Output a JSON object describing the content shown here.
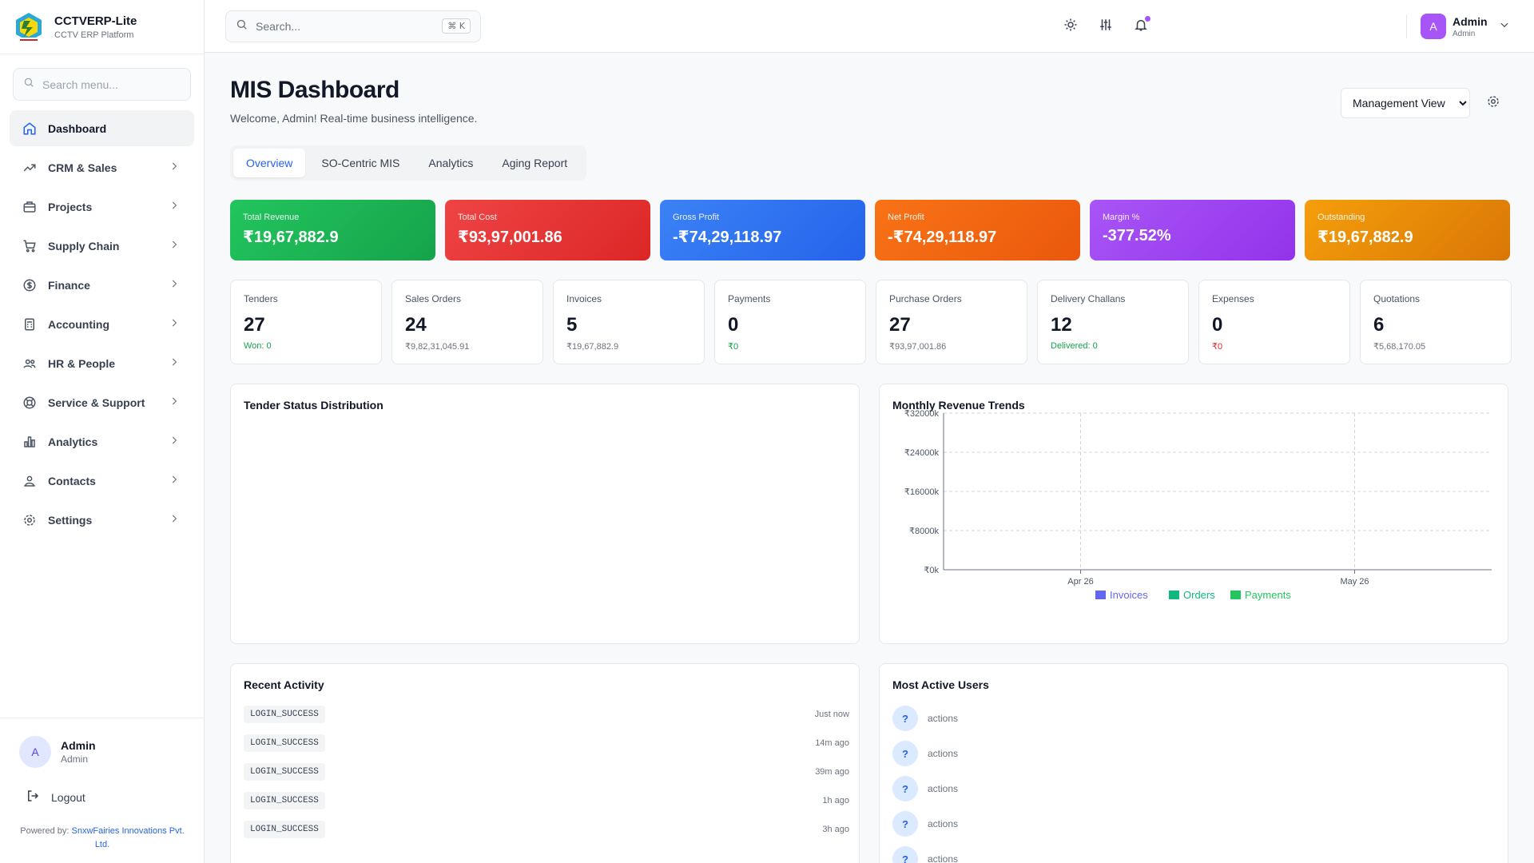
{
  "app": {
    "name": "CCTVERP-Lite",
    "subtitle": "CCTV ERP Platform"
  },
  "sidebar": {
    "search_placeholder": "Search menu...",
    "items": [
      {
        "label": "Dashboard",
        "icon": "home-icon",
        "active": true
      },
      {
        "label": "CRM & Sales",
        "icon": "trending-up-icon"
      },
      {
        "label": "Projects",
        "icon": "briefcase-icon"
      },
      {
        "label": "Supply Chain",
        "icon": "cart-icon"
      },
      {
        "label": "Finance",
        "icon": "dollar-circle-icon"
      },
      {
        "label": "Accounting",
        "icon": "calculator-icon"
      },
      {
        "label": "HR & People",
        "icon": "users-icon"
      },
      {
        "label": "Service & Support",
        "icon": "lifebuoy-icon"
      },
      {
        "label": "Analytics",
        "icon": "bar-chart-icon"
      },
      {
        "label": "Contacts",
        "icon": "contacts-icon"
      },
      {
        "label": "Settings",
        "icon": "gear-icon"
      }
    ],
    "user": {
      "initial": "A",
      "name": "Admin",
      "role": "Admin"
    },
    "logout_label": "Logout",
    "powered_prefix": "Powered by:",
    "powered_company": "SnxwFairies Innovations Pvt. Ltd."
  },
  "header": {
    "search_placeholder": "Search...",
    "shortcut": "⌘ K",
    "user": {
      "initial": "A",
      "name": "Admin",
      "role": "Admin"
    }
  },
  "page": {
    "title": "MIS Dashboard",
    "subtitle": "Welcome, Admin! Real-time business intelligence.",
    "view_selected": "Management View"
  },
  "tabs": [
    "Overview",
    "SO-Centric MIS",
    "Analytics",
    "Aging Report"
  ],
  "kpis": [
    {
      "label": "Total Revenue",
      "value": "₹19,67,882.9",
      "color": "#16a34a"
    },
    {
      "label": "Total Cost",
      "value": "₹93,97,001.86",
      "color": "#dc2626"
    },
    {
      "label": "Gross Profit",
      "value": "-₹74,29,118.97",
      "color": "#2563eb"
    },
    {
      "label": "Net Profit",
      "value": "-₹74,29,118.97",
      "color": "#ea580c"
    },
    {
      "label": "Margin %",
      "value": "-377.52%",
      "color": "#9333ea"
    },
    {
      "label": "Outstanding",
      "value": "₹19,67,882.9",
      "color": "#d97706"
    }
  ],
  "stats": [
    {
      "label": "Tenders",
      "value": "27",
      "sub": "Won: 0",
      "sub_color": "#16a34a"
    },
    {
      "label": "Sales Orders",
      "value": "24",
      "sub": "₹9,82,31,045.91",
      "sub_color": "#6b7280"
    },
    {
      "label": "Invoices",
      "value": "5",
      "sub": "₹19,67,882.9",
      "sub_color": "#6b7280"
    },
    {
      "label": "Payments",
      "value": "0",
      "sub": "₹0",
      "sub_color": "#16a34a"
    },
    {
      "label": "Purchase Orders",
      "value": "27",
      "sub": "₹93,97,001.86",
      "sub_color": "#6b7280"
    },
    {
      "label": "Delivery Challans",
      "value": "12",
      "sub": "Delivered: 0",
      "sub_color": "#16a34a"
    },
    {
      "label": "Expenses",
      "value": "0",
      "sub": "₹0",
      "sub_color": "#dc2626"
    },
    {
      "label": "Quotations",
      "value": "6",
      "sub": "₹5,68,170.05",
      "sub_color": "#6b7280"
    }
  ],
  "tender_card": {
    "title": "Tender Status Distribution"
  },
  "revenue_card": {
    "title": "Monthly Revenue Trends"
  },
  "chart_data": {
    "type": "bar",
    "title": "Monthly Revenue Trends",
    "categories": [
      "Apr 26",
      "May 26"
    ],
    "y_ticks": [
      "₹32000k",
      "₹24000k",
      "₹16000k",
      "₹8000k",
      "₹0k"
    ],
    "ylim": [
      0,
      32000
    ],
    "grid": true,
    "legend_position": "bottom",
    "series": [
      {
        "name": "Invoices",
        "color": "#6366f1",
        "values": [
          0,
          0
        ]
      },
      {
        "name": "Orders",
        "color": "#10b981",
        "values": [
          0,
          0
        ]
      },
      {
        "name": "Payments",
        "color": "#22c55e",
        "values": [
          0,
          0
        ]
      }
    ]
  },
  "activity_card": {
    "title": "Recent Activity",
    "items": [
      {
        "action": "LOGIN_SUCCESS",
        "time": "Just now"
      },
      {
        "action": "LOGIN_SUCCESS",
        "time": "14m ago"
      },
      {
        "action": "LOGIN_SUCCESS",
        "time": "39m ago"
      },
      {
        "action": "LOGIN_SUCCESS",
        "time": "1h ago"
      },
      {
        "action": "LOGIN_SUCCESS",
        "time": "3h ago"
      }
    ]
  },
  "users_card": {
    "title": "Most Active Users",
    "items": [
      {
        "initial": "?",
        "label": "actions"
      },
      {
        "initial": "?",
        "label": "actions"
      },
      {
        "initial": "?",
        "label": "actions"
      },
      {
        "initial": "?",
        "label": "actions"
      },
      {
        "initial": "?",
        "label": "actions"
      }
    ]
  }
}
